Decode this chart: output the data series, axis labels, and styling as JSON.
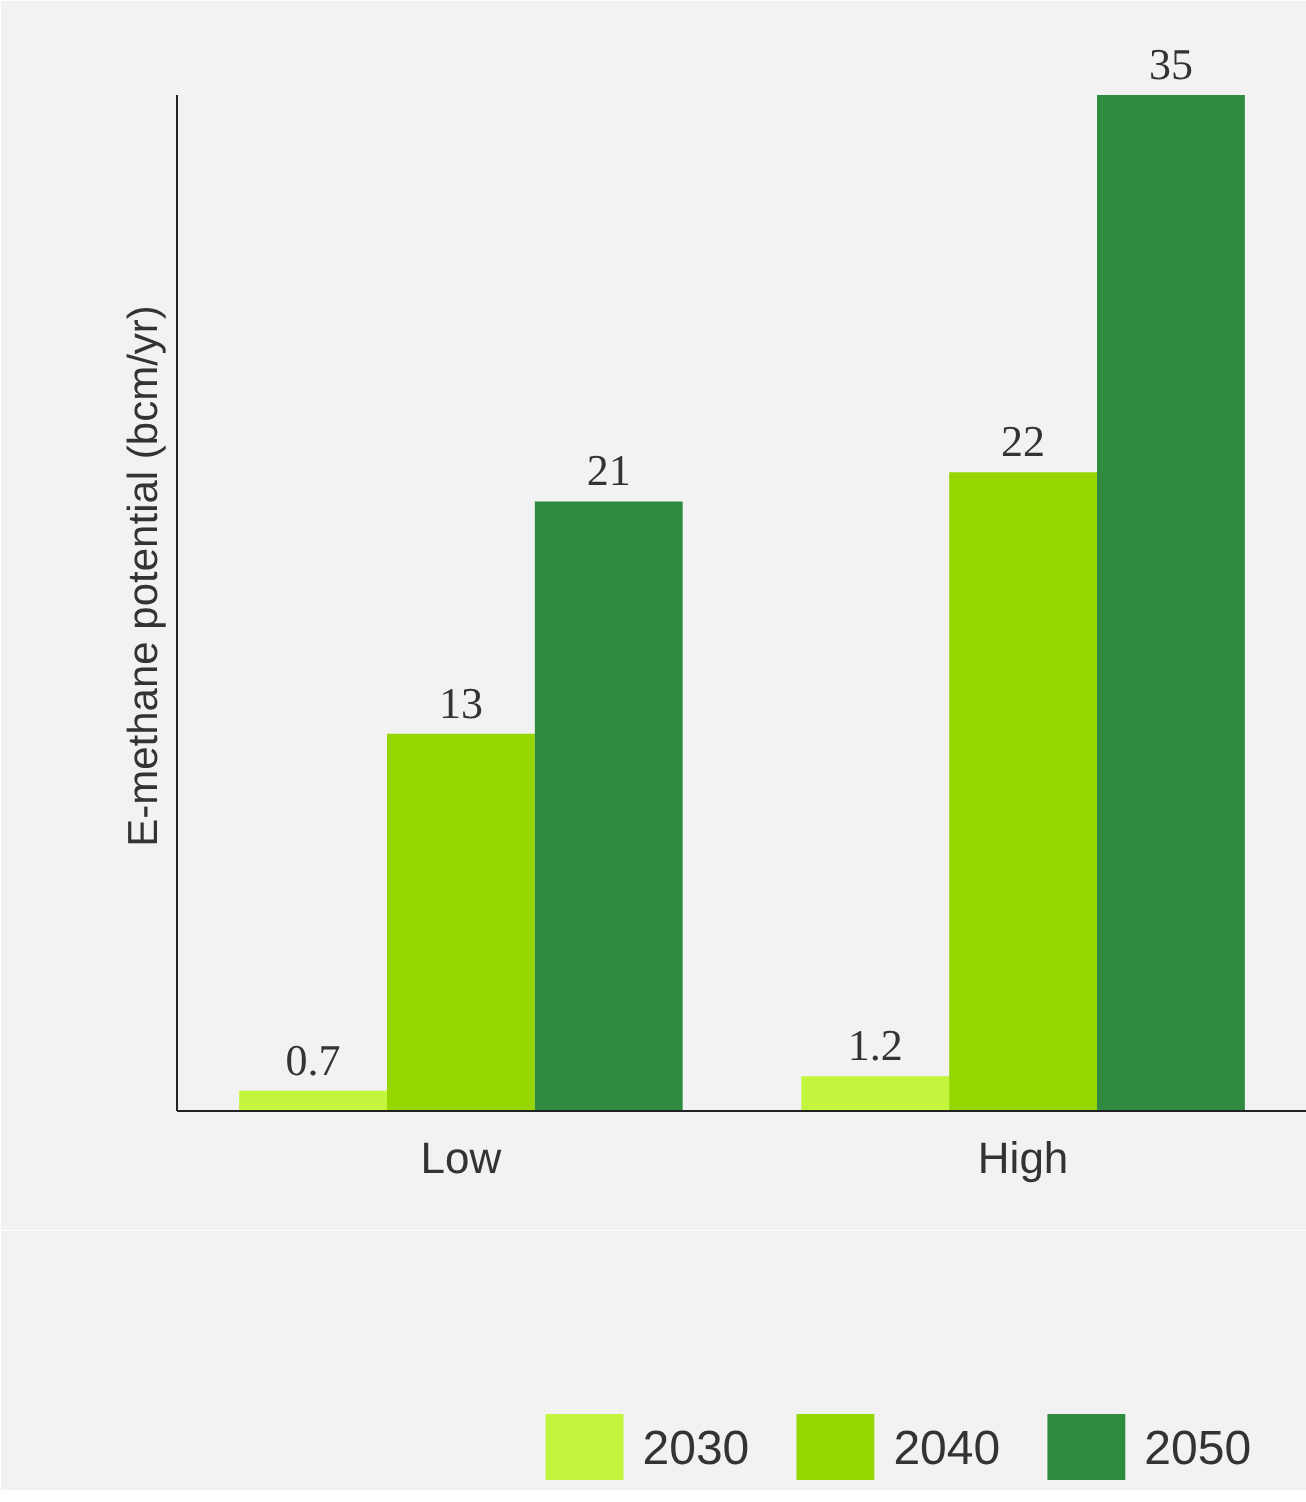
{
  "chart_data": {
    "type": "bar",
    "ylabel": "E-methane potential (bcm/yr)",
    "categories": [
      "Low",
      "High"
    ],
    "series": [
      {
        "name": "2030",
        "color": "#c3f53c",
        "values": [
          0.7,
          1.2
        ]
      },
      {
        "name": "2040",
        "color": "#95d600",
        "values": [
          13,
          22
        ]
      },
      {
        "name": "2050",
        "color": "#2e8b3f",
        "values": [
          21,
          35
        ]
      }
    ],
    "ylim": [
      0,
      35
    ],
    "tick_labels": "x",
    "data_labels": true,
    "legend": "bottom",
    "grid": false
  }
}
